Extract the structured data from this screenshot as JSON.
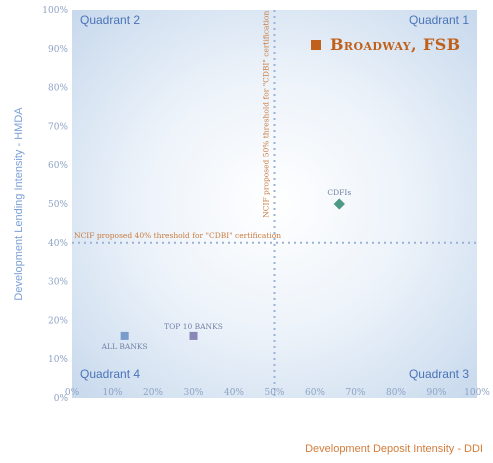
{
  "chart_data": {
    "type": "scatter",
    "xlabel": "Development Deposit Intensity - DDI",
    "ylabel": "Development Lending Intensity - HMDA",
    "xlim": [
      0,
      100
    ],
    "ylim": [
      0,
      100
    ],
    "x_ticks": [
      "0%",
      "10%",
      "20%",
      "30%",
      "40%",
      "50%",
      "60%",
      "70%",
      "80%",
      "90%",
      "100%"
    ],
    "y_ticks": [
      "0%",
      "10%",
      "20%",
      "30%",
      "40%",
      "50%",
      "60%",
      "70%",
      "80%",
      "90%",
      "100%"
    ],
    "grid": false,
    "quadrants": [
      "Quadrant 1",
      "Quadrant 2",
      "Quadrant 3",
      "Quadrant 4"
    ],
    "thresholds": {
      "vertical": {
        "x": 50,
        "label": "NCIF proposed 50% threshold for \"CDBI\" certification"
      },
      "horizontal": {
        "y": 40,
        "label": "NCIF proposed 40% threshold for \"CDBI\" certification"
      }
    },
    "points": [
      {
        "label": "ALL BANKS",
        "x": 13,
        "y": 16,
        "shape": "square",
        "color": "#7a9ccc"
      },
      {
        "label": "TOP 10 BANKS",
        "x": 30,
        "y": 16,
        "shape": "square",
        "color": "#8a86b8"
      },
      {
        "label": "CDFIs",
        "x": 66,
        "y": 50,
        "shape": "diamond",
        "color": "#4e9a86"
      }
    ],
    "legend": {
      "label": "Broadway, FSB",
      "color": "#c0601a",
      "placement": "top-right"
    }
  }
}
